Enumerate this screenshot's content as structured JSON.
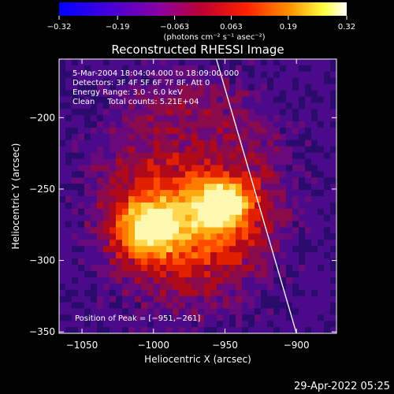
{
  "chart_data": {
    "type": "heatmap",
    "title": "Reconstructed RHESSI Image",
    "xlabel": "Heliocentric X (arcsec)",
    "ylabel": "Heliocentric Y (arcsec)",
    "xlim": [
      -1066,
      -872
    ],
    "ylim": [
      -351,
      -159
    ],
    "xticks": [
      -1050,
      -1000,
      -950,
      -900
    ],
    "xtick_labels": [
      "−1050",
      "−1000",
      "−950",
      "−900"
    ],
    "yticks": [
      -200,
      -250,
      -300,
      -350
    ],
    "ytick_labels": [
      "−200",
      "−250",
      "−300",
      "−350"
    ],
    "colorbar": {
      "min": -0.32,
      "max": 0.32,
      "ticks": [
        -0.32,
        -0.19,
        -0.063,
        0.063,
        0.19,
        0.32
      ],
      "tick_labels": [
        "−0.32",
        "−0.19",
        "−0.063",
        "0.063",
        "0.19",
        "0.32"
      ],
      "unit_label": "(photons cm⁻² s⁻¹ asec⁻²)",
      "colors": [
        "#0000ff",
        "#5a00c8",
        "#9a0070",
        "#e00000",
        "#ff8c00",
        "#ffff80",
        "#ffffff"
      ]
    },
    "info": {
      "time": "5-Mar-2004 18:04:04.000 to 18:09:00.000",
      "detectors": "Detectors: 3F 4F 5F 6F 7F 8F, Att 0",
      "energy": "Energy Range: 3.0 - 6.0 keV",
      "clean": "Clean     Total counts: 5.21E+04"
    },
    "peak_label": "Position of Peak = [−951,−261]",
    "peak": [
      -951,
      -261
    ],
    "limb_line": [
      [
        -956,
        -159
      ],
      [
        -900,
        -351
      ]
    ],
    "sources": [
      {
        "x": -952,
        "y": -260,
        "amp": 0.3,
        "sx": 13,
        "sy": 10
      },
      {
        "x": -1005,
        "y": -278,
        "amp": 0.24,
        "sx": 14,
        "sy": 14
      },
      {
        "x": -975,
        "y": -272,
        "amp": 0.2,
        "sx": 30,
        "sy": 22
      }
    ],
    "blob": {
      "x": -975,
      "y": -255,
      "rx": 78,
      "ry": 95,
      "level": 0.1
    },
    "background": -0.07,
    "footer_timestamp": "29-Apr-2022 05:25"
  }
}
